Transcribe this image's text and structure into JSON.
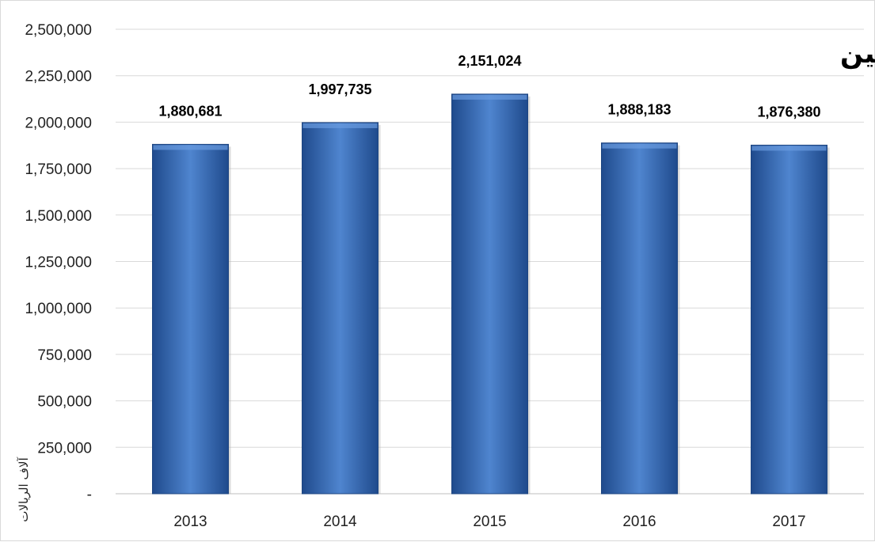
{
  "chart_data": {
    "type": "bar",
    "title": "حقوق المساهمين",
    "ylabel": "آلاف الريالات",
    "xlabel": "",
    "categories": [
      "2013",
      "2014",
      "2015",
      "2016",
      "2017"
    ],
    "values": [
      1880681,
      1997735,
      2151024,
      1888183,
      1876380
    ],
    "value_labels": [
      "1,880,681",
      "1,997,735",
      "2,151,024",
      "1,888,183",
      "1,876,380"
    ],
    "ylim": [
      0,
      2500000
    ],
    "yticks": [
      0,
      250000,
      500000,
      750000,
      1000000,
      1250000,
      1500000,
      1750000,
      2000000,
      2250000,
      2500000
    ],
    "ytick_labels": [
      "-",
      "250,000",
      "500,000",
      "750,000",
      "1,000,000",
      "1,250,000",
      "1,500,000",
      "1,750,000",
      "2,000,000",
      "2,250,000",
      "2,500,000"
    ],
    "grid": true,
    "legend": "none",
    "bar_color": "#2e62ad",
    "bar_color_light": "#4f85cf",
    "bar_color_dark": "#1f4a8c"
  }
}
